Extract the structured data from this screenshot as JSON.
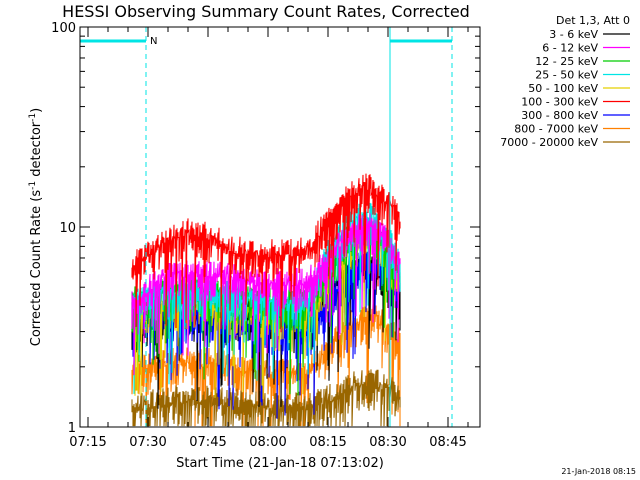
{
  "chart_data": {
    "type": "line",
    "title": "HESSI Observing Summary Count Rates, Corrected",
    "xlabel": "Start Time (21-Jan-18 07:13:02)",
    "ylabel_main": "Corrected Count Rate (s",
    "ylabel_sup1": "-1",
    "ylabel_mid": " detector",
    "ylabel_sup2": "-1",
    "ylabel_end": ")",
    "yscale": "log",
    "ylim": [
      1,
      100
    ],
    "xlim": [
      "07:13",
      "08:53"
    ],
    "x_ticks": [
      "07:15",
      "07:30",
      "07:45",
      "08:00",
      "08:15",
      "08:30",
      "08:45"
    ],
    "y_ticks": [
      "1",
      "10",
      "100"
    ],
    "legend_title": "Det 1,3, Att 0",
    "legend_position": "top-right",
    "night_marker": "N",
    "night_intervals": [
      [
        "07:13",
        "07:29.5"
      ],
      [
        "08:30.5",
        "08:46"
      ]
    ],
    "data_gaps": [
      [
        "07:13",
        "07:25.5"
      ],
      [
        "08:33",
        "08:53"
      ]
    ],
    "series": [
      {
        "name": "3 - 6 keV",
        "color": "#000000",
        "x": [
          "07:26",
          "07:35",
          "07:45",
          "08:00",
          "08:10",
          "08:15",
          "08:20",
          "08:25",
          "08:30",
          "08:33"
        ],
        "values": [
          3.0,
          3.5,
          3.5,
          3.5,
          3.5,
          4.5,
          6.0,
          6.0,
          5.0,
          4.0
        ]
      },
      {
        "name": "6 - 12 keV",
        "color": "#ff00ff",
        "x": [
          "07:26",
          "07:35",
          "07:45",
          "08:00",
          "08:10",
          "08:15",
          "08:20",
          "08:25",
          "08:30",
          "08:33"
        ],
        "values": [
          4.0,
          5.5,
          5.5,
          5.0,
          5.0,
          6.5,
          9.0,
          10.0,
          8.0,
          6.0
        ]
      },
      {
        "name": "12 - 25 keV",
        "color": "#00cc00",
        "x": [
          "07:26",
          "07:35",
          "07:45",
          "08:00",
          "08:10",
          "08:15",
          "08:20",
          "08:25",
          "08:30",
          "08:33"
        ],
        "values": [
          4.0,
          4.5,
          4.5,
          4.0,
          4.0,
          6.0,
          8.5,
          9.5,
          7.5,
          5.5
        ]
      },
      {
        "name": "25 - 50 keV",
        "color": "#00e5e5",
        "x": [
          "07:26",
          "07:35",
          "07:45",
          "08:00",
          "08:10",
          "08:15",
          "08:20",
          "08:25",
          "08:30",
          "08:33"
        ],
        "values": [
          4.0,
          4.5,
          4.5,
          4.0,
          4.0,
          7.0,
          10.0,
          11.0,
          8.5,
          6.0
        ]
      },
      {
        "name": "50 - 100 keV",
        "color": "#e5d000",
        "x": [
          "07:26",
          "07:35",
          "07:45",
          "08:00",
          "08:10",
          "08:15",
          "08:20",
          "08:25",
          "08:30",
          "08:33"
        ],
        "values": [
          3.5,
          4.0,
          4.0,
          3.5,
          3.5,
          5.5,
          8.0,
          9.0,
          7.0,
          5.0
        ]
      },
      {
        "name": "100 - 300 keV",
        "color": "#ff0000",
        "x": [
          "07:26",
          "07:30",
          "07:35",
          "07:40",
          "07:45",
          "07:50",
          "07:55",
          "08:00",
          "08:05",
          "08:10",
          "08:15",
          "08:20",
          "08:25",
          "08:30",
          "08:33"
        ],
        "values": [
          6.0,
          7.0,
          8.0,
          9.0,
          8.5,
          7.5,
          7.0,
          7.0,
          7.0,
          7.5,
          10.0,
          13.5,
          15.0,
          13.0,
          10.0
        ]
      },
      {
        "name": "300 - 800 keV",
        "color": "#0000ff",
        "x": [
          "07:26",
          "07:35",
          "07:45",
          "08:00",
          "08:10",
          "08:15",
          "08:20",
          "08:25",
          "08:30",
          "08:33"
        ],
        "values": [
          3.5,
          3.5,
          3.5,
          3.0,
          3.0,
          4.0,
          5.5,
          6.5,
          6.0,
          5.0
        ]
      },
      {
        "name": "800 - 7000 keV",
        "color": "#ff8000",
        "x": [
          "07:26",
          "07:35",
          "07:45",
          "08:00",
          "08:10",
          "08:15",
          "08:20",
          "08:25",
          "08:30",
          "08:33"
        ],
        "values": [
          1.8,
          2.0,
          2.0,
          1.8,
          1.8,
          2.3,
          3.0,
          3.5,
          3.0,
          2.5
        ]
      },
      {
        "name": "7000 - 20000 keV",
        "color": "#996600",
        "x": [
          "07:26",
          "07:35",
          "07:45",
          "08:00",
          "08:10",
          "08:15",
          "08:20",
          "08:25",
          "08:30",
          "08:33"
        ],
        "values": [
          1.2,
          1.3,
          1.3,
          1.2,
          1.2,
          1.3,
          1.5,
          1.6,
          1.5,
          1.3
        ]
      }
    ],
    "footer_date": "21-Jan-2018 08:15"
  }
}
